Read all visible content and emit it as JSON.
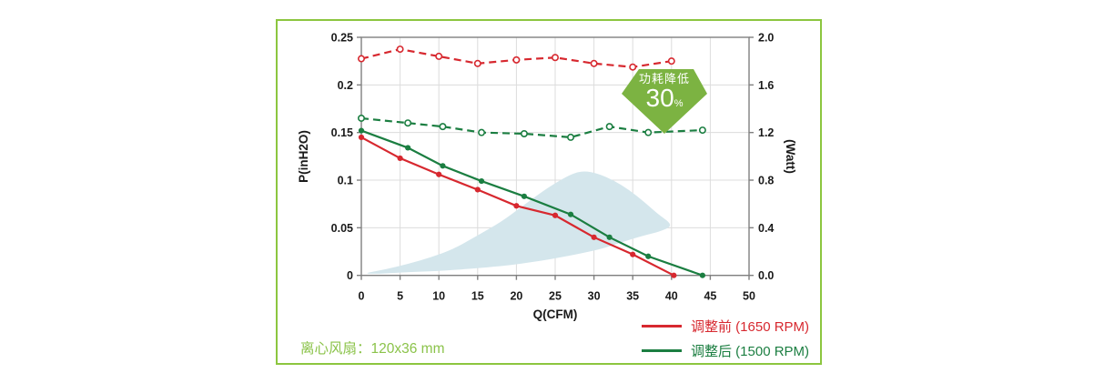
{
  "frame": {
    "border_color": "#8cc63f",
    "background": "#ffffff"
  },
  "caption": {
    "text": "离心风扇：120x36 mm",
    "color": "#8bc34a"
  },
  "badge": {
    "name": "power-reduction-arrow",
    "line1": "功耗降低",
    "line2": "30",
    "pct": "%",
    "color": "#7cb342"
  },
  "legend": [
    {
      "label": "调整前 (1650 RPM)",
      "color": "#d7282f"
    },
    {
      "label": "调整后 (1500 RPM)",
      "color": "#1b7e41"
    }
  ],
  "chart_data": {
    "type": "line",
    "title": "",
    "grid": true,
    "colors": {
      "grid": "#dcdcdc",
      "axis_frame": "#808080",
      "region": "#d4e6ec"
    },
    "x_axis": {
      "label": "Q(CFM)",
      "min": 0,
      "max": 50,
      "ticks": [
        0,
        5,
        10,
        15,
        20,
        25,
        30,
        35,
        40,
        45,
        50
      ]
    },
    "y_left": {
      "label": "P(inH2O)",
      "min": 0,
      "max": 0.25,
      "ticks": [
        0,
        0.05,
        0.1,
        0.15,
        0.2,
        0.25
      ],
      "tick_labels": [
        "0",
        "0.05",
        "0.1",
        "0.15",
        "0.2",
        "0.25"
      ]
    },
    "y_right": {
      "label": "(Watt)",
      "min": 0,
      "max": 2.0,
      "ticks": [
        0,
        0.4,
        0.8,
        1.2,
        1.6,
        2.0
      ],
      "tick_labels": [
        "0.0",
        "0.4",
        "0.8",
        "1.2",
        "1.6",
        "2.0"
      ]
    },
    "series": [
      {
        "name": "调整前 P-Q (1650 RPM)",
        "axis": "left",
        "style": "solid",
        "marker": "filled",
        "color": "#d7282f",
        "points": [
          [
            0,
            0.145
          ],
          [
            5,
            0.123
          ],
          [
            10,
            0.106
          ],
          [
            15,
            0.09
          ],
          [
            20,
            0.073
          ],
          [
            25,
            0.063
          ],
          [
            30,
            0.04
          ],
          [
            35,
            0.022
          ],
          [
            40.3,
            0
          ]
        ]
      },
      {
        "name": "调整后 P-Q (1500 RPM)",
        "axis": "left",
        "style": "solid",
        "marker": "filled",
        "color": "#1b7e41",
        "points": [
          [
            0,
            0.152
          ],
          [
            6,
            0.134
          ],
          [
            10.5,
            0.115
          ],
          [
            15.5,
            0.099
          ],
          [
            21,
            0.083
          ],
          [
            27,
            0.064
          ],
          [
            32,
            0.04
          ],
          [
            37,
            0.02
          ],
          [
            44,
            0
          ]
        ]
      },
      {
        "name": "调整前 功耗 (1650 RPM)",
        "axis": "right",
        "style": "dashed",
        "marker": "open",
        "color": "#d7282f",
        "points": [
          [
            0,
            1.82
          ],
          [
            5,
            1.9
          ],
          [
            10,
            1.84
          ],
          [
            15,
            1.78
          ],
          [
            20,
            1.81
          ],
          [
            25,
            1.83
          ],
          [
            30,
            1.78
          ],
          [
            35,
            1.75
          ],
          [
            40,
            1.8
          ]
        ]
      },
      {
        "name": "调整后 功耗 (1500 RPM)",
        "axis": "right",
        "style": "dashed",
        "marker": "open",
        "color": "#1b7e41",
        "points": [
          [
            0,
            1.32
          ],
          [
            6,
            1.28
          ],
          [
            10.5,
            1.25
          ],
          [
            15.5,
            1.2
          ],
          [
            21,
            1.19
          ],
          [
            27,
            1.16
          ],
          [
            32,
            1.25
          ],
          [
            37,
            1.2
          ],
          [
            44,
            1.22
          ]
        ]
      }
    ],
    "operating_region": {
      "name": "recommended-operating-region",
      "color": "#d4e6ec",
      "points": [
        [
          0.2,
          0.002
        ],
        [
          3,
          0.006
        ],
        [
          6,
          0.012
        ],
        [
          9,
          0.019
        ],
        [
          12,
          0.028
        ],
        [
          15,
          0.042
        ],
        [
          18,
          0.056
        ],
        [
          20.5,
          0.071
        ],
        [
          23,
          0.086
        ],
        [
          25,
          0.097
        ],
        [
          27,
          0.106
        ],
        [
          28.6,
          0.11
        ],
        [
          30.5,
          0.107
        ],
        [
          32.5,
          0.1
        ],
        [
          34.5,
          0.09
        ],
        [
          36.5,
          0.077
        ],
        [
          38.3,
          0.064
        ],
        [
          39.7,
          0.056
        ],
        [
          39.9,
          0.051
        ],
        [
          38.5,
          0.046
        ],
        [
          36.5,
          0.042
        ],
        [
          34,
          0.036
        ],
        [
          31.5,
          0.029
        ],
        [
          29.5,
          0.025
        ],
        [
          27,
          0.021
        ],
        [
          24.5,
          0.017
        ],
        [
          22,
          0.014
        ],
        [
          19.5,
          0.011
        ],
        [
          17,
          0.009
        ],
        [
          14,
          0.007
        ],
        [
          11,
          0.005
        ],
        [
          8,
          0.004
        ],
        [
          5,
          0.003
        ],
        [
          2,
          0.0015
        ]
      ]
    },
    "legend_position": "bottom-right"
  }
}
